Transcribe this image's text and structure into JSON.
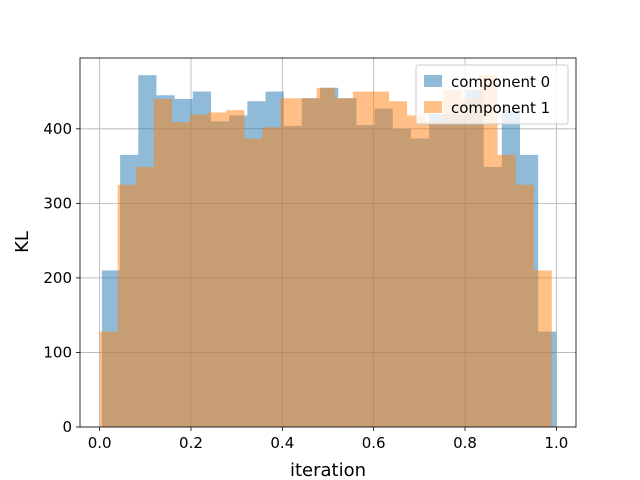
{
  "chart_data": {
    "type": "bar",
    "subtype": "overlaid-histogram",
    "title": "",
    "xlabel": "iteration",
    "ylabel": "KL",
    "xlim": [
      -0.043,
      1.043
    ],
    "ylim": [
      0,
      495
    ],
    "xticks": [
      "0.0",
      "0.2",
      "0.4",
      "0.6",
      "0.8",
      "1.0"
    ],
    "yticks": [
      "0",
      "100",
      "200",
      "300",
      "400"
    ],
    "grid": true,
    "legend_position": "top-right",
    "series": [
      {
        "name": "component 0",
        "color": "#1f77b4",
        "alpha": 0.5,
        "bin_edges": [
          0.005,
          0.0448,
          0.0846,
          0.1244,
          0.1642,
          0.204,
          0.2438,
          0.2836,
          0.3234,
          0.3632,
          0.403,
          0.4428,
          0.4826,
          0.5224,
          0.5622,
          0.602,
          0.6418,
          0.6816,
          0.7214,
          0.7612,
          0.801,
          0.8408,
          0.8806,
          0.9204,
          0.9602,
          1.0
        ],
        "counts": [
          210,
          365,
          472,
          445,
          440,
          450,
          410,
          418,
          437,
          450,
          404,
          441,
          455,
          441,
          405,
          427,
          400,
          387,
          420,
          420,
          452,
          349,
          425,
          365,
          128
        ]
      },
      {
        "name": "component 1",
        "color": "#ff7f0e",
        "alpha": 0.5,
        "bin_edges": [
          0.0,
          0.0396,
          0.0792,
          0.1188,
          0.1584,
          0.198,
          0.2376,
          0.2772,
          0.3168,
          0.3564,
          0.396,
          0.4356,
          0.4752,
          0.5148,
          0.5544,
          0.594,
          0.6336,
          0.6732,
          0.7128,
          0.7524,
          0.792,
          0.8316,
          0.8712,
          0.9108,
          0.9504,
          0.99
        ],
        "counts": [
          128,
          325,
          349,
          440,
          409,
          419,
          422,
          425,
          387,
          402,
          441,
          441,
          455,
          441,
          450,
          450,
          437,
          418,
          410,
          452,
          441,
          472,
          365,
          325,
          210
        ]
      }
    ]
  }
}
